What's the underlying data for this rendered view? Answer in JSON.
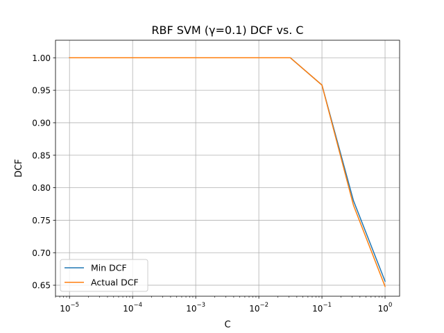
{
  "chart_data": {
    "type": "line",
    "title": "RBF SVM (γ=0.1) DCF vs. C",
    "xlabel": "C",
    "ylabel": "DCF",
    "xscale": "log",
    "xlim": [
      6e-06,
      1.7
    ],
    "ylim": [
      0.633,
      1.027
    ],
    "x": [
      1e-05,
      0.0001,
      0.001,
      0.01,
      0.0316,
      0.1,
      0.316,
      1.0
    ],
    "x_ticks": [
      {
        "value": 1e-05,
        "base": "10",
        "exp": "−5"
      },
      {
        "value": 0.0001,
        "base": "10",
        "exp": "−4"
      },
      {
        "value": 0.001,
        "base": "10",
        "exp": "−3"
      },
      {
        "value": 0.01,
        "base": "10",
        "exp": "−2"
      },
      {
        "value": 0.1,
        "base": "10",
        "exp": "−1"
      },
      {
        "value": 1,
        "base": "10",
        "exp": "0"
      }
    ],
    "y_ticks": [
      {
        "value": 0.65,
        "label": "0.65"
      },
      {
        "value": 0.7,
        "label": "0.70"
      },
      {
        "value": 0.75,
        "label": "0.75"
      },
      {
        "value": 0.8,
        "label": "0.80"
      },
      {
        "value": 0.85,
        "label": "0.85"
      },
      {
        "value": 0.9,
        "label": "0.90"
      },
      {
        "value": 0.95,
        "label": "0.95"
      },
      {
        "value": 1.0,
        "label": "1.00"
      }
    ],
    "series": [
      {
        "name": "Min DCF",
        "color": "#1f77b4",
        "values": [
          1.0,
          1.0,
          1.0,
          1.0,
          1.0,
          0.958,
          0.78,
          0.656
        ]
      },
      {
        "name": "Actual DCF",
        "color": "#ff7f0e",
        "values": [
          1.0,
          1.0,
          1.0,
          1.0,
          1.0,
          0.958,
          0.773,
          0.648
        ]
      }
    ],
    "grid": true,
    "legend_position": "lower-left"
  }
}
